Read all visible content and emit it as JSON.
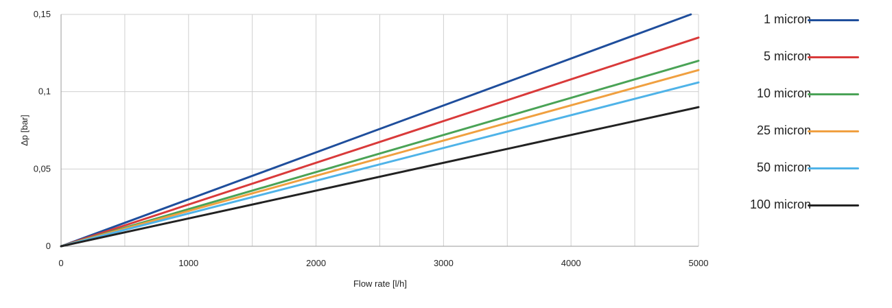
{
  "chart_data": {
    "type": "line",
    "xlabel": "Flow rate [l/h]",
    "ylabel": "Δp [bar]",
    "xlim": [
      0,
      5000
    ],
    "ylim": [
      0,
      0.15
    ],
    "x_ticks": [
      0,
      1000,
      2000,
      3000,
      4000,
      5000
    ],
    "x_tick_labels": [
      "0",
      "1000",
      "2000",
      "3000",
      "4000",
      "5000"
    ],
    "x_grid": [
      500,
      1000,
      1500,
      2000,
      2500,
      3000,
      3500,
      4000,
      4500
    ],
    "y_ticks": [
      0,
      0.05,
      0.1,
      0.15
    ],
    "y_tick_labels": [
      "0",
      "0,05",
      "0,1",
      "0,15"
    ],
    "grid": true,
    "legend_position": "right",
    "series": [
      {
        "name": "1 micron",
        "color": "#1f4e9c",
        "x": [
          0,
          4940
        ],
        "y": [
          0,
          0.15
        ]
      },
      {
        "name": "5 micron",
        "color": "#d93a3a",
        "x": [
          0,
          5000
        ],
        "y": [
          0,
          0.135
        ]
      },
      {
        "name": "10 micron",
        "color": "#4aa356",
        "x": [
          0,
          5000
        ],
        "y": [
          0,
          0.12
        ]
      },
      {
        "name": "25 micron",
        "color": "#f0a040",
        "x": [
          0,
          5000
        ],
        "y": [
          0,
          0.114
        ]
      },
      {
        "name": "50 micron",
        "color": "#4fb3e8",
        "x": [
          0,
          5000
        ],
        "y": [
          0,
          0.106
        ]
      },
      {
        "name": "100 micron",
        "color": "#222222",
        "x": [
          0,
          5000
        ],
        "y": [
          0,
          0.09
        ]
      }
    ]
  }
}
